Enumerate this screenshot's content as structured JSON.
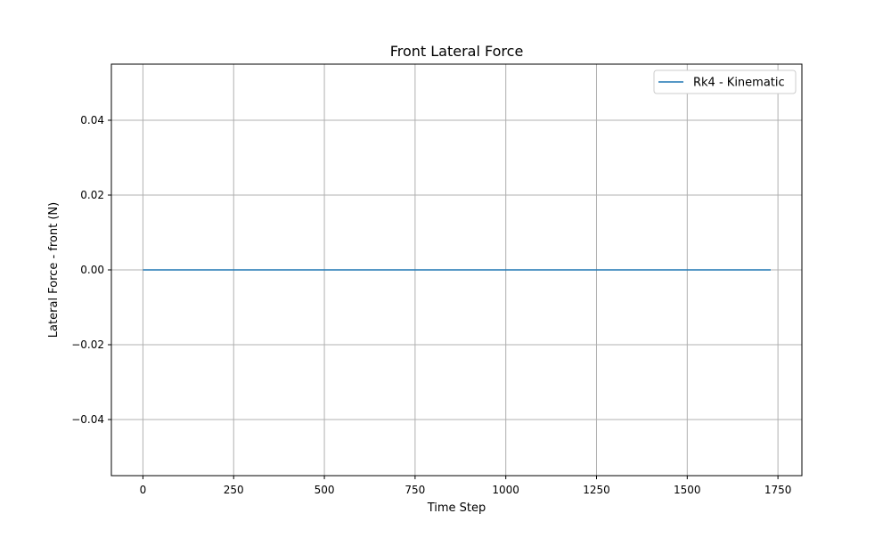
{
  "chart_data": {
    "type": "line",
    "title": "Front Lateral Force",
    "xlabel": "Time Step",
    "ylabel": "Lateral Force - front (N)",
    "xlim": [
      -87,
      1816
    ],
    "ylim": [
      -0.055,
      0.055
    ],
    "x_ticks": [
      0,
      250,
      500,
      750,
      1000,
      1250,
      1500,
      1750
    ],
    "x_tick_labels": [
      "0",
      "250",
      "500",
      "750",
      "1000",
      "1250",
      "1500",
      "1750"
    ],
    "y_ticks": [
      -0.04,
      -0.02,
      0.0,
      0.02,
      0.04
    ],
    "y_tick_labels": [
      "−0.04",
      "−0.02",
      "0.00",
      "0.02",
      "0.04"
    ],
    "grid": true,
    "legend_position": "upper right",
    "series": [
      {
        "name": "Rk4 - Kinematic",
        "color": "#1f77b4",
        "x": [
          0,
          1730
        ],
        "y": [
          0.0,
          0.0
        ]
      }
    ]
  }
}
